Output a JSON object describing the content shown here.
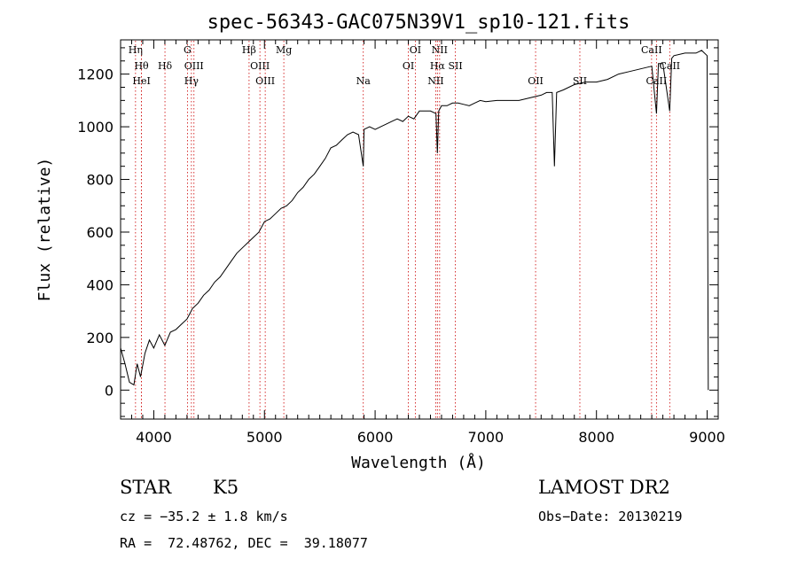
{
  "chart_data": {
    "type": "line",
    "title": "spec-56343-GAC075N39V1_sp10-121.fits",
    "xlabel": "Wavelength (Å)",
    "ylabel": "Flux (relative)",
    "xlim": [
      3700,
      9100
    ],
    "ylim": [
      -110,
      1330
    ],
    "xticks": [
      4000,
      5000,
      6000,
      7000,
      8000,
      9000
    ],
    "yticks": [
      0,
      200,
      400,
      600,
      800,
      1000,
      1200
    ],
    "grid": false,
    "line_color": "#000000",
    "marker_color": "#cc0000",
    "series": [
      {
        "x": [
          3700,
          3740,
          3780,
          3820,
          3850,
          3880,
          3920,
          3960,
          4000,
          4050,
          4100,
          4150,
          4200,
          4250,
          4300,
          4350,
          4400,
          4450,
          4500,
          4550,
          4600,
          4650,
          4700,
          4750,
          4800,
          4850,
          4900,
          4950,
          5000,
          5050,
          5100,
          5150,
          5200,
          5250,
          5300,
          5350,
          5400,
          5450,
          5500,
          5550,
          5600,
          5650,
          5700,
          5750,
          5800,
          5850,
          5893,
          5900,
          5950,
          6000,
          6050,
          6100,
          6150,
          6200,
          6250,
          6300,
          6350,
          6400,
          6450,
          6500,
          6550,
          6563,
          6575,
          6600,
          6650,
          6700,
          6750,
          6800,
          6850,
          6900,
          6950,
          7000,
          7100,
          7200,
          7300,
          7400,
          7500,
          7550,
          7600,
          7620,
          7640,
          7700,
          7800,
          7900,
          8000,
          8100,
          8200,
          8300,
          8400,
          8500,
          8542,
          8560,
          8600,
          8662,
          8680,
          8700,
          8800,
          8900,
          8950,
          9000,
          9010
        ],
        "y": [
          160,
          100,
          30,
          20,
          100,
          50,
          140,
          190,
          160,
          210,
          170,
          220,
          230,
          250,
          270,
          310,
          330,
          360,
          380,
          410,
          430,
          460,
          490,
          520,
          540,
          560,
          580,
          600,
          640,
          650,
          670,
          690,
          700,
          720,
          750,
          770,
          800,
          820,
          850,
          880,
          920,
          930,
          950,
          970,
          980,
          970,
          850,
          990,
          1000,
          990,
          1000,
          1010,
          1020,
          1030,
          1020,
          1040,
          1030,
          1060,
          1060,
          1060,
          1050,
          900,
          1060,
          1080,
          1080,
          1090,
          1090,
          1085,
          1080,
          1090,
          1100,
          1095,
          1100,
          1100,
          1100,
          1110,
          1120,
          1130,
          1130,
          850,
          1130,
          1140,
          1160,
          1170,
          1170,
          1180,
          1200,
          1210,
          1220,
          1230,
          1050,
          1240,
          1240,
          1060,
          1260,
          1270,
          1280,
          1280,
          1290,
          1270,
          0
        ]
      }
    ],
    "lines": [
      {
        "wl": 3835,
        "label": "Hη",
        "row": 0
      },
      {
        "wl": 3889,
        "label": "Hθ",
        "row": 1
      },
      {
        "wl": 3889,
        "label": "HeI",
        "row": 2
      },
      {
        "wl": 4101,
        "label": "Hδ",
        "row": 1
      },
      {
        "wl": 4304,
        "label": "G",
        "row": 0
      },
      {
        "wl": 4340,
        "label": "Hγ",
        "row": 2
      },
      {
        "wl": 4363,
        "label": "OIII",
        "row": 1
      },
      {
        "wl": 4861,
        "label": "Hβ",
        "row": 0
      },
      {
        "wl": 4959,
        "label": "OIII",
        "row": 1
      },
      {
        "wl": 5007,
        "label": "OIII",
        "row": 2
      },
      {
        "wl": 5175,
        "label": "Mg",
        "row": 0
      },
      {
        "wl": 5893,
        "label": "Na",
        "row": 2
      },
      {
        "wl": 6300,
        "label": "OI",
        "row": 1
      },
      {
        "wl": 6363,
        "label": "OI",
        "row": 0
      },
      {
        "wl": 6548,
        "label": "NII",
        "row": 2
      },
      {
        "wl": 6563,
        "label": "Hα",
        "row": 1
      },
      {
        "wl": 6583,
        "label": "NII",
        "row": 0
      },
      {
        "wl": 6725,
        "label": "SII",
        "row": 1
      },
      {
        "wl": 7450,
        "label": "OII",
        "row": 2
      },
      {
        "wl": 7850,
        "label": "SII",
        "row": 2
      },
      {
        "wl": 8498,
        "label": "CaII",
        "row": 0
      },
      {
        "wl": 8542,
        "label": "CaII",
        "row": 2
      },
      {
        "wl": 8662,
        "label": "CaII",
        "row": 1
      }
    ]
  },
  "info": {
    "class_label": "STAR",
    "subclass": "K5",
    "survey": "LAMOST DR2",
    "cz": "cz = −35.2 ± 1.8 km/s",
    "obs_date": "Obs−Date: 20130219",
    "coords": "RA =  72.48762, DEC =  39.18077"
  }
}
